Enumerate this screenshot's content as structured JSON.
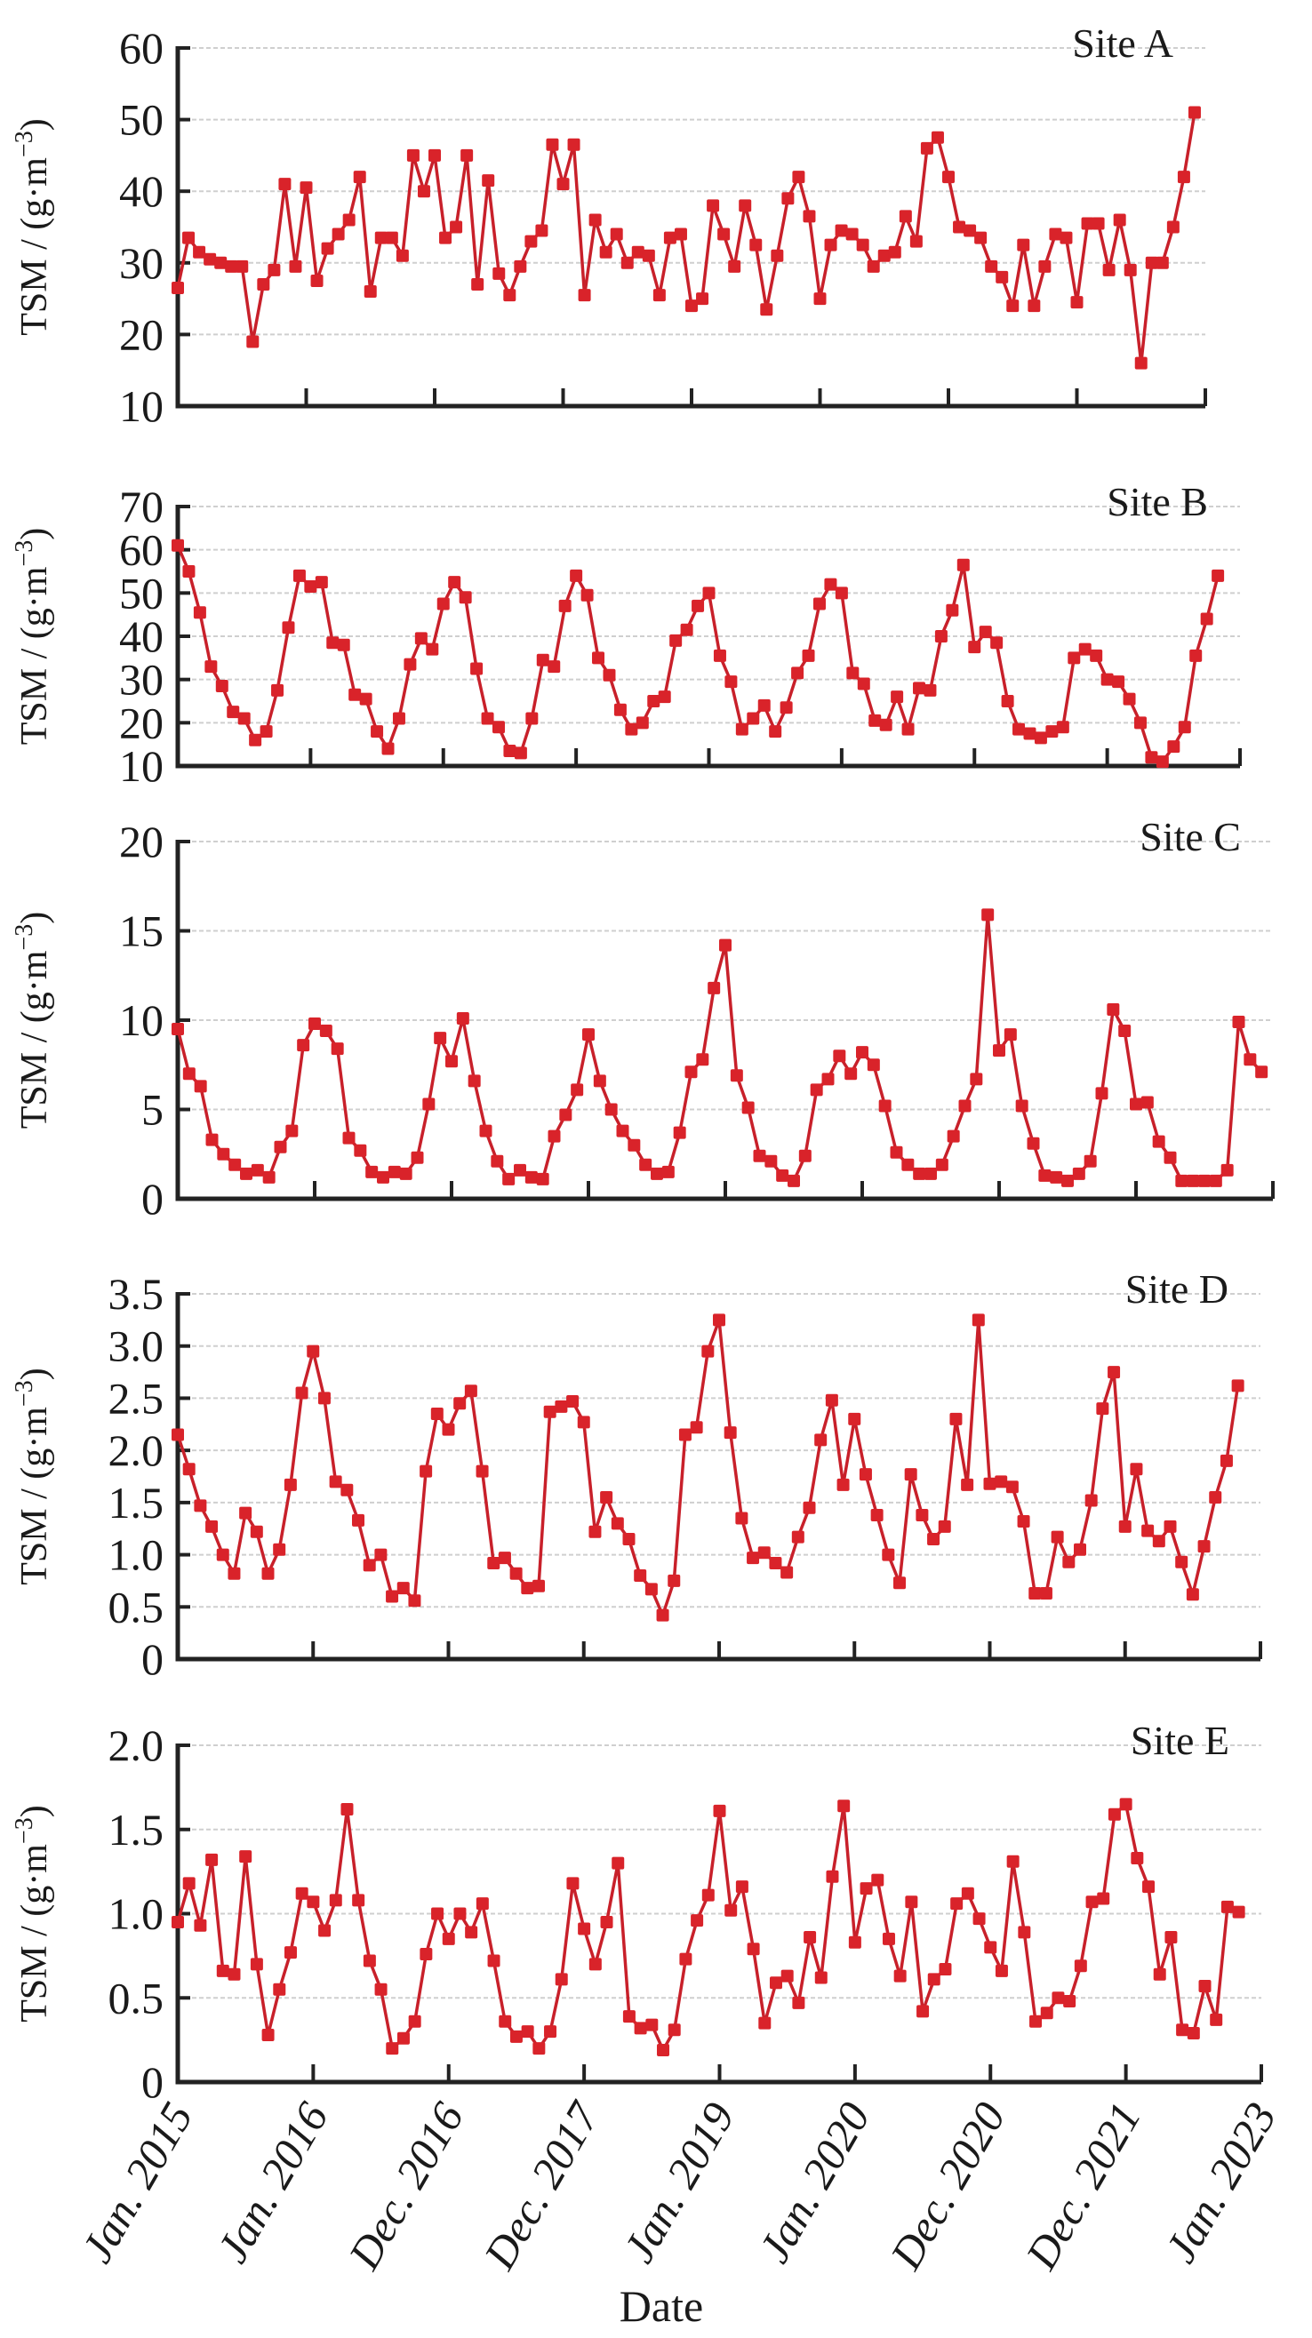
{
  "chart_data": {
    "type": "line",
    "xlabel": "Date",
    "x_tick_labels": [
      "Jan. 2015",
      "Jan. 2016",
      "Dec. 2016",
      "Dec. 2017",
      "Jan. 2019",
      "Jan. 2020",
      "Dec. 2020",
      "Dec. 2021",
      "Jan. 2023"
    ],
    "x_units": "monthly samples starting Jan. 2015",
    "ylabel": {
      "main": "TSM / (g·m",
      "sup": "−3",
      "end": ")"
    },
    "color": "#d9232a",
    "panels": [
      {
        "name": "Site A",
        "ylim": [
          10,
          60
        ],
        "yticks": [
          10,
          20,
          30,
          40,
          50,
          60
        ],
        "ytick_labels": [
          "10",
          "20",
          "30",
          "40",
          "50",
          "60"
        ],
        "values": [
          26.5,
          33.5,
          31.5,
          30.5,
          30,
          29.5,
          29.5,
          19,
          27,
          29,
          41,
          29.5,
          40.5,
          27.5,
          32,
          34,
          36,
          42,
          26,
          33.5,
          33.5,
          31,
          45,
          40,
          45,
          33.5,
          35,
          45,
          27,
          41.5,
          28.5,
          25.5,
          29.5,
          33,
          34.5,
          46.5,
          41,
          46.5,
          25.5,
          36,
          31.5,
          34,
          30,
          31.5,
          31,
          25.5,
          33.5,
          34,
          24,
          25,
          38,
          34,
          29.5,
          38,
          32.5,
          23.5,
          31,
          39,
          42,
          36.5,
          25,
          32.5,
          34.5,
          34,
          32.5,
          29.5,
          31,
          31.5,
          36.5,
          33,
          46,
          47.5,
          42,
          35,
          34.5,
          33.5,
          29.5,
          28,
          24,
          32.5,
          24,
          29.5,
          34,
          33.5,
          24.5,
          35.5,
          35.5,
          29,
          36,
          29,
          16,
          30,
          30,
          35,
          42,
          51
        ]
      },
      {
        "name": "Site B",
        "ylim": [
          10,
          70
        ],
        "yticks": [
          10,
          20,
          30,
          40,
          50,
          60,
          70
        ],
        "ytick_labels": [
          "10",
          "20",
          "30",
          "40",
          "50",
          "60",
          "70"
        ],
        "values": [
          61,
          55,
          45.5,
          33,
          28.5,
          22.5,
          21,
          16,
          18,
          27.5,
          42,
          54,
          51.5,
          52.5,
          38.5,
          38,
          26.5,
          25.5,
          18,
          14,
          21,
          33.5,
          39.5,
          37,
          47.5,
          52.5,
          49,
          32.5,
          21,
          19,
          13.5,
          13,
          21,
          34.5,
          33,
          47,
          54,
          49.5,
          35,
          31,
          23,
          18.5,
          20,
          25,
          26,
          39,
          41.5,
          47,
          50,
          35.5,
          29.5,
          18.5,
          21,
          24,
          18,
          23.5,
          31.5,
          35.5,
          47.5,
          52,
          50,
          31.5,
          29,
          20.5,
          19.5,
          26,
          18.5,
          28,
          27.5,
          40,
          46,
          56.5,
          37.5,
          41,
          38.5,
          25,
          18.5,
          17.5,
          16.5,
          18,
          19,
          35,
          37,
          35.5,
          30,
          29.5,
          25.5,
          20,
          12,
          11,
          14.5,
          19,
          35.5,
          44,
          54
        ]
      },
      {
        "name": "Site C",
        "ylim": [
          0,
          20
        ],
        "yticks": [
          0,
          5,
          10,
          15,
          20
        ],
        "ytick_labels": [
          "0",
          "5",
          "10",
          "15",
          "20"
        ],
        "values": [
          9.5,
          7,
          6.3,
          3.3,
          2.5,
          1.9,
          1.4,
          1.6,
          1.2,
          2.9,
          3.8,
          8.6,
          9.8,
          9.4,
          8.4,
          3.4,
          2.7,
          1.5,
          1.2,
          1.5,
          1.4,
          2.3,
          5.3,
          9,
          7.7,
          10.1,
          6.6,
          3.8,
          2.1,
          1.1,
          1.6,
          1.2,
          1.1,
          3.5,
          4.7,
          6.1,
          9.2,
          6.6,
          5,
          3.8,
          3,
          1.9,
          1.4,
          1.5,
          3.7,
          7.1,
          7.8,
          11.8,
          14.2,
          6.9,
          5.1,
          2.4,
          2.1,
          1.3,
          1,
          2.4,
          6.1,
          6.7,
          8,
          7,
          8.2,
          7.5,
          5.2,
          2.6,
          1.9,
          1.4,
          1.4,
          1.9,
          3.5,
          5.2,
          6.7,
          15.9,
          8.3,
          9.2,
          5.2,
          3.1,
          1.3,
          1.2,
          1,
          1.4,
          2.1,
          5.9,
          10.6,
          9.4,
          5.3,
          5.4,
          3.2,
          2.3,
          1,
          1,
          1,
          1,
          1.6,
          9.9,
          7.8,
          7.1
        ]
      },
      {
        "name": "Site D",
        "ylim": [
          0,
          3.5
        ],
        "yticks": [
          0,
          0.5,
          1,
          1.5,
          2,
          2.5,
          3,
          3.5
        ],
        "ytick_labels": [
          "0",
          "0.5",
          "1.0",
          "1.5",
          "2.0",
          "2.5",
          "3.0",
          "3.5"
        ],
        "values": [
          2.15,
          1.82,
          1.47,
          1.27,
          1.0,
          0.82,
          1.4,
          1.22,
          0.82,
          1.05,
          1.67,
          2.55,
          2.95,
          2.5,
          1.7,
          1.62,
          1.33,
          0.9,
          1.0,
          0.6,
          0.68,
          0.56,
          1.8,
          2.35,
          2.2,
          2.45,
          2.57,
          1.8,
          0.92,
          0.97,
          0.82,
          0.68,
          0.7,
          2.37,
          2.42,
          2.47,
          2.27,
          1.22,
          1.55,
          1.3,
          1.15,
          0.8,
          0.67,
          0.42,
          0.75,
          2.15,
          2.22,
          2.95,
          3.25,
          2.17,
          1.35,
          0.97,
          1.02,
          0.92,
          0.83,
          1.17,
          1.45,
          2.1,
          2.48,
          1.67,
          2.3,
          1.77,
          1.38,
          1.0,
          0.73,
          1.77,
          1.38,
          1.15,
          1.27,
          2.3,
          1.67,
          3.25,
          1.68,
          1.7,
          1.65,
          1.32,
          0.63,
          0.63,
          1.17,
          0.93,
          1.05,
          1.52,
          2.4,
          2.75,
          1.27,
          1.82,
          1.23,
          1.13,
          1.27,
          0.93,
          0.62,
          1.08,
          1.55,
          1.9,
          2.62
        ]
      },
      {
        "name": "Site E",
        "ylim": [
          0,
          2.0
        ],
        "yticks": [
          0,
          0.5,
          1,
          1.5,
          2
        ],
        "ytick_labels": [
          "0",
          "0.5",
          "1.0",
          "1.5",
          "2.0"
        ],
        "values": [
          0.95,
          1.18,
          0.93,
          1.32,
          0.66,
          0.64,
          1.34,
          0.7,
          0.28,
          0.55,
          0.77,
          1.12,
          1.07,
          0.9,
          1.08,
          1.62,
          1.08,
          0.72,
          0.55,
          0.2,
          0.26,
          0.36,
          0.76,
          1.0,
          0.85,
          1.0,
          0.89,
          1.06,
          0.72,
          0.36,
          0.27,
          0.3,
          0.2,
          0.3,
          0.61,
          1.18,
          0.91,
          0.7,
          0.95,
          1.3,
          0.39,
          0.32,
          0.34,
          0.19,
          0.31,
          0.73,
          0.96,
          1.11,
          1.61,
          1.02,
          1.16,
          0.79,
          0.35,
          0.59,
          0.63,
          0.47,
          0.86,
          0.62,
          1.22,
          1.64,
          0.83,
          1.15,
          1.2,
          0.85,
          0.63,
          1.07,
          0.42,
          0.61,
          0.67,
          1.06,
          1.12,
          0.97,
          0.8,
          0.66,
          1.31,
          0.89,
          0.36,
          0.41,
          0.5,
          0.48,
          0.69,
          1.07,
          1.09,
          1.59,
          1.65,
          1.33,
          1.16,
          0.64,
          0.86,
          0.31,
          0.29,
          0.57,
          0.37,
          1.04,
          1.01
        ]
      }
    ]
  }
}
